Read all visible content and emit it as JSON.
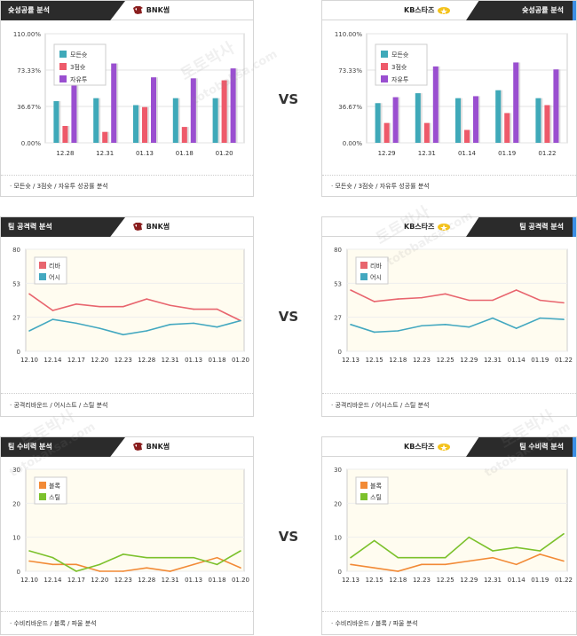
{
  "colors": {
    "modeunsuk": "#3fa9b9",
    "three": "#ee5a6a",
    "free": "#9a4fd0",
    "rebound": "#e8656e",
    "assist": "#43a8c0",
    "block": "#f28a36",
    "steal": "#7cc12c",
    "left_accent": "#f39800",
    "right_accent": "#3b8fe5"
  },
  "vs_label": "VS",
  "watermark": "토토박사",
  "watermark2": "totobaksa.com",
  "left_team": {
    "name": "BNK썸",
    "logo_icon": "bnk-bull-logo-icon"
  },
  "right_team": {
    "name": "KB스타즈",
    "logo_icon": "kb-stars-logo-icon"
  },
  "panels": [
    {
      "title": "슛성공률 분석",
      "footer": "모든슛 / 3점슛 / 자유투 성공률 분석"
    },
    {
      "title": "팀 공격력 분석",
      "footer": "공격리바운드 / 어시스트 / 스틸 분석"
    },
    {
      "title": "팀 수비력 분석",
      "footer": "수비리바운드 / 블록 / 파울 분석"
    }
  ],
  "chart_data": [
    {
      "id": "shoot-left",
      "type": "bar",
      "categories": [
        "12.28",
        "12.31",
        "01.13",
        "01.18",
        "01.20"
      ],
      "yticks": [
        "110.00%",
        "73.33%",
        "36.67%",
        "0.00%"
      ],
      "ylim": [
        0,
        110
      ],
      "series": [
        {
          "name": "모든슛",
          "values": [
            42,
            45,
            38,
            45,
            45
          ]
        },
        {
          "name": "3점슛",
          "values": [
            17,
            11,
            36,
            16,
            63
          ]
        },
        {
          "name": "자유투",
          "values": [
            64,
            80,
            66,
            65,
            75
          ]
        }
      ]
    },
    {
      "id": "shoot-right",
      "type": "bar",
      "categories": [
        "12.29",
        "12.31",
        "01.14",
        "01.19",
        "01.22"
      ],
      "yticks": [
        "110.00%",
        "73.33%",
        "36.67%",
        "0.00%"
      ],
      "ylim": [
        0,
        110
      ],
      "series": [
        {
          "name": "모든슛",
          "values": [
            40,
            50,
            45,
            53,
            45
          ]
        },
        {
          "name": "3점슛",
          "values": [
            20,
            20,
            13,
            30,
            38
          ]
        },
        {
          "name": "자유투",
          "values": [
            46,
            77,
            47,
            81,
            74
          ]
        }
      ]
    },
    {
      "id": "attack-left",
      "type": "line",
      "categories": [
        "12.10",
        "12.14",
        "12.17",
        "12.20",
        "12.23",
        "12.28",
        "12.31",
        "01.13",
        "01.18",
        "01.20"
      ],
      "yticks": [
        "80",
        "53",
        "27",
        "0"
      ],
      "ylim": [
        0,
        80
      ],
      "series": [
        {
          "name": "리바",
          "values": [
            45,
            32,
            37,
            35,
            35,
            41,
            36,
            33,
            33,
            24
          ]
        },
        {
          "name": "어시",
          "values": [
            16,
            25,
            22,
            18,
            13,
            16,
            21,
            22,
            19,
            24
          ]
        }
      ]
    },
    {
      "id": "attack-right",
      "type": "line",
      "categories": [
        "12.13",
        "12.15",
        "12.18",
        "12.23",
        "12.25",
        "12.29",
        "12.31",
        "01.14",
        "01.19",
        "01.22"
      ],
      "yticks": [
        "80",
        "53",
        "27",
        "0"
      ],
      "ylim": [
        0,
        80
      ],
      "series": [
        {
          "name": "리바",
          "values": [
            48,
            39,
            41,
            42,
            45,
            40,
            40,
            48,
            40,
            38
          ]
        },
        {
          "name": "어시",
          "values": [
            21,
            15,
            16,
            20,
            21,
            19,
            26,
            18,
            26,
            25
          ]
        }
      ]
    },
    {
      "id": "defense-left",
      "type": "line",
      "categories": [
        "12.10",
        "12.14",
        "12.17",
        "12.20",
        "12.23",
        "12.28",
        "12.31",
        "01.13",
        "01.18",
        "01.20"
      ],
      "yticks": [
        "30",
        "20",
        "10",
        "0"
      ],
      "ylim": [
        0,
        30
      ],
      "series": [
        {
          "name": "블록",
          "values": [
            3,
            2,
            2,
            0,
            0,
            1,
            0,
            2,
            4,
            1
          ]
        },
        {
          "name": "스틸",
          "values": [
            6,
            4,
            0,
            2,
            5,
            4,
            4,
            4,
            2,
            6
          ]
        }
      ]
    },
    {
      "id": "defense-right",
      "type": "line",
      "categories": [
        "12.13",
        "12.15",
        "12.18",
        "12.23",
        "12.25",
        "12.29",
        "12.31",
        "01.14",
        "01.19",
        "01.22"
      ],
      "yticks": [
        "30",
        "20",
        "10",
        "0"
      ],
      "ylim": [
        0,
        30
      ],
      "series": [
        {
          "name": "블록",
          "values": [
            2,
            1,
            0,
            2,
            2,
            3,
            4,
            2,
            5,
            3
          ]
        },
        {
          "name": "스틸",
          "values": [
            4,
            9,
            4,
            4,
            4,
            10,
            6,
            7,
            6,
            11
          ]
        }
      ]
    }
  ]
}
